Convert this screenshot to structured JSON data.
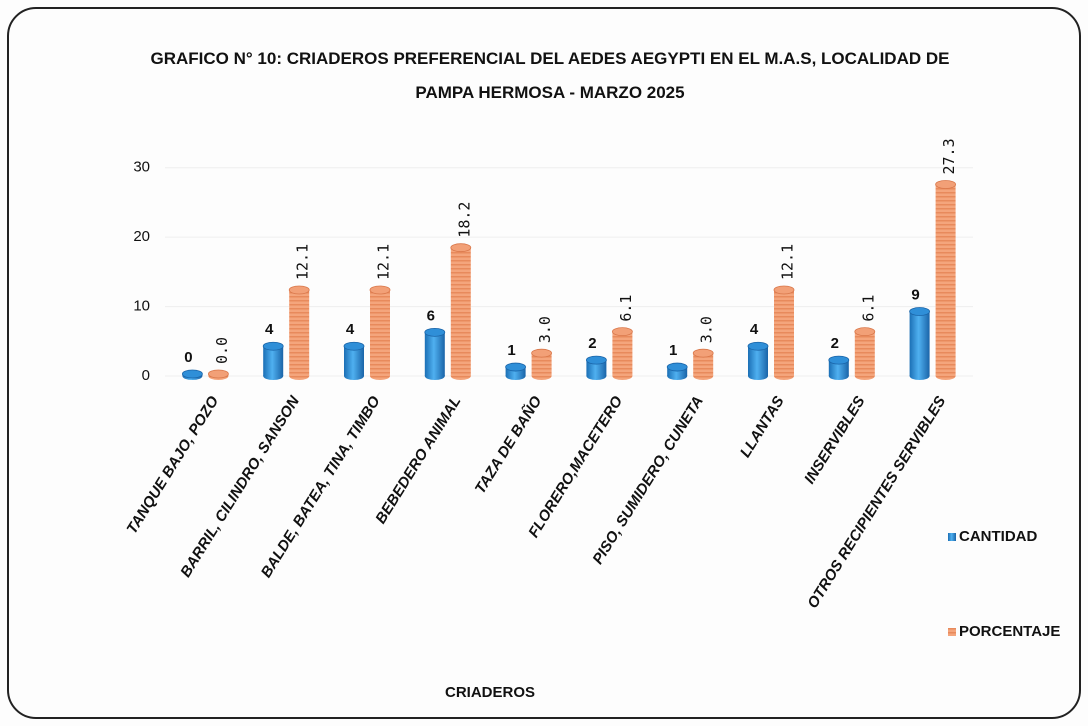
{
  "chart_data": {
    "type": "bar",
    "title": "GRAFICO N° 10:  CRIADEROS PREFERENCIAL DEL AEDES AEGYPTI EN EL M.A.S, LOCALIDAD DE PAMPA HERMOSA - MARZO 2025",
    "x_label": "CRIADEROS",
    "categories": [
      "TANQUE BAJO, POZO",
      "BARRIL, CILINDRO, SANSON",
      "BALDE, BATEA, TINA, TIMBO",
      "BEBEDERO ANIMAL",
      "TAZA DE BAÑO",
      "FLORERO,MACETERO",
      "PISO, SUMIDERO,  CUNETA",
      "LLANTAS",
      "INSERVIBLES",
      "OTROS RECIPIENTES SERVIBLES"
    ],
    "series": [
      {
        "name": "CANTIDAD",
        "color": "#2f8fd8",
        "values": [
          0,
          4,
          4,
          6,
          1,
          2,
          1,
          4,
          2,
          9
        ]
      },
      {
        "name": "PORCENTAJE",
        "color": "#f2a077",
        "values": [
          0,
          12.1,
          12.1,
          18.2,
          3,
          6.1,
          3,
          12.1,
          6.1,
          27.3
        ],
        "value_labels": [
          "0.0",
          "12.1",
          "12.1",
          "18.2",
          "3.0",
          "6.1",
          "3.0",
          "12.1",
          "6.1",
          "27.3"
        ]
      }
    ],
    "ylim": [
      0,
      34
    ],
    "yticks": [
      0,
      10,
      20,
      30
    ],
    "grid": true,
    "legend": "right"
  }
}
